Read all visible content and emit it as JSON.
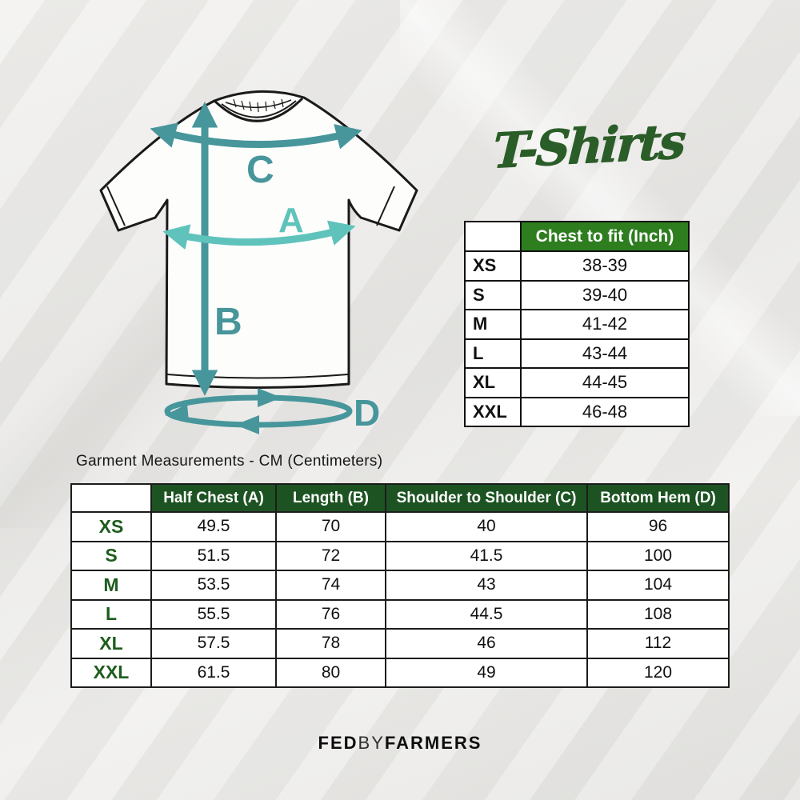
{
  "title": "T-Shirts",
  "diagram": {
    "labels": {
      "a": "A",
      "b": "B",
      "c": "C",
      "d": "D"
    }
  },
  "inch_table": {
    "header_blank": "",
    "header_value": "Chest to fit (Inch)",
    "rows": [
      {
        "size": "XS",
        "value": "38-39"
      },
      {
        "size": "S",
        "value": "39-40"
      },
      {
        "size": "M",
        "value": "41-42"
      },
      {
        "size": "L",
        "value": "43-44"
      },
      {
        "size": "XL",
        "value": "44-45"
      },
      {
        "size": "XXL",
        "value": "46-48"
      }
    ]
  },
  "cm_caption": "Garment Measurements - CM (Centimeters)",
  "cm_table": {
    "headers": {
      "blank": "",
      "half_chest": "Half Chest (A)",
      "length": "Length (B)",
      "shoulder": "Shoulder to Shoulder (C)",
      "bottom_hem": "Bottom Hem (D)"
    },
    "rows": [
      {
        "size": "XS",
        "half_chest": "49.5",
        "length": "70",
        "shoulder": "40",
        "bottom_hem": "96"
      },
      {
        "size": "S",
        "half_chest": "51.5",
        "length": "72",
        "shoulder": "41.5",
        "bottom_hem": "100"
      },
      {
        "size": "M",
        "half_chest": "53.5",
        "length": "74",
        "shoulder": "43",
        "bottom_hem": "104"
      },
      {
        "size": "L",
        "half_chest": "55.5",
        "length": "76",
        "shoulder": "44.5",
        "bottom_hem": "108"
      },
      {
        "size": "XL",
        "half_chest": "57.5",
        "length": "78",
        "shoulder": "46",
        "bottom_hem": "112"
      },
      {
        "size": "XXL",
        "half_chest": "61.5",
        "length": "80",
        "shoulder": "49",
        "bottom_hem": "120"
      }
    ]
  },
  "footer": {
    "fed": "FED",
    "by": "BY",
    "farmers": "FARMERS"
  },
  "colors": {
    "teal_dark": "#47969b",
    "teal_light": "#5fc3bc",
    "green_bright_header": "#2e7d1f",
    "green_dark_header": "#1d5322",
    "green_size_label": "#1e5c1e",
    "green_title": "#2b5d28"
  }
}
